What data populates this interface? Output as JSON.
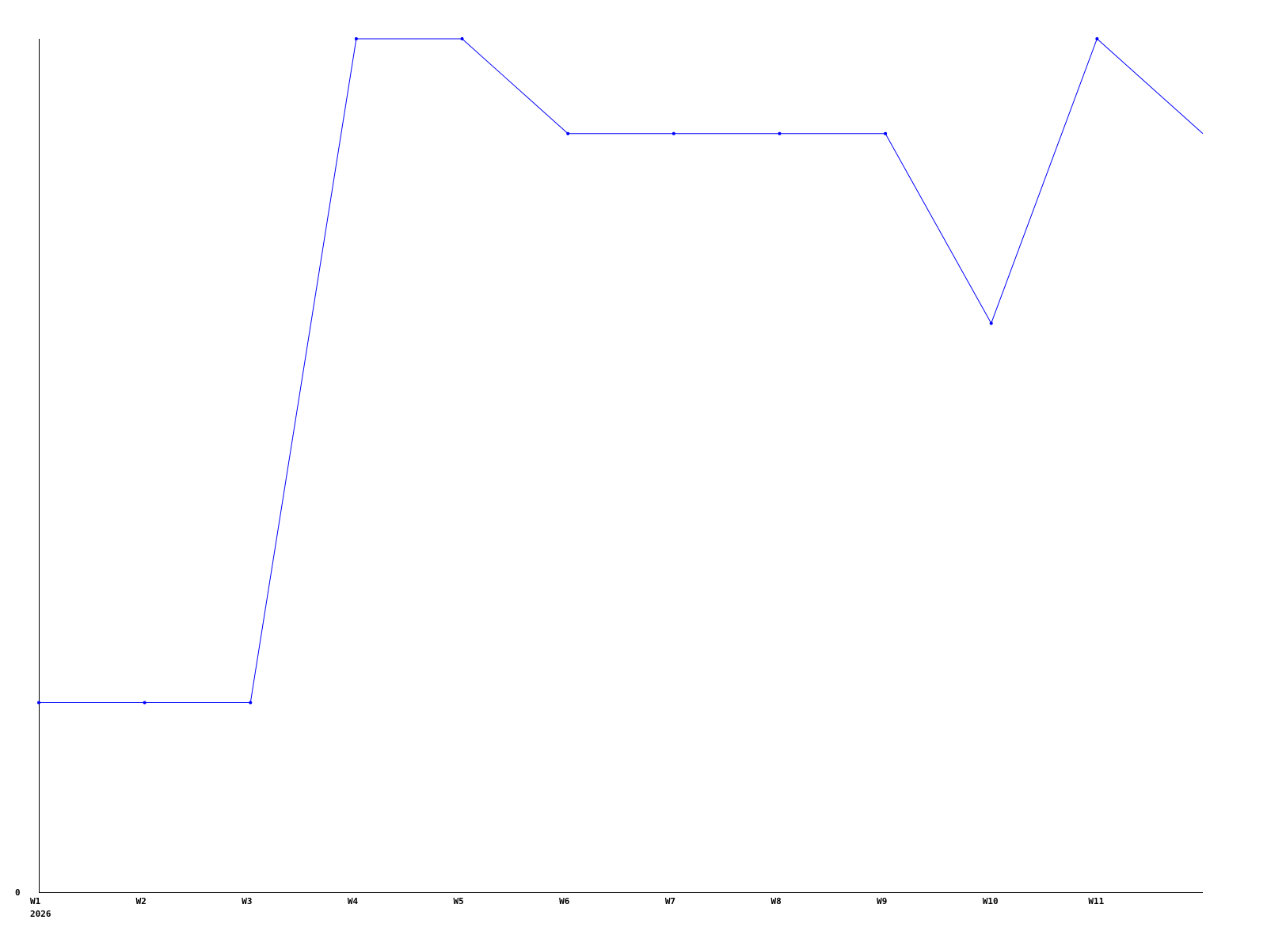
{
  "chart_data": {
    "type": "line",
    "title": "",
    "xlabel": "",
    "ylabel": "",
    "categories": [
      "W1",
      "W2",
      "W3",
      "W4",
      "W5",
      "W6",
      "W7",
      "W8",
      "W9",
      "W10",
      "W11",
      ""
    ],
    "year_label": "2026",
    "y_tick_labels": [
      "0"
    ],
    "ylim": [
      0,
      9
    ],
    "grid": false,
    "series": [
      {
        "values": [
          2,
          2,
          2,
          9,
          9,
          8,
          8,
          8,
          8,
          6,
          9,
          8
        ],
        "color": "#0000ff"
      }
    ],
    "axis_color": "#000000"
  }
}
